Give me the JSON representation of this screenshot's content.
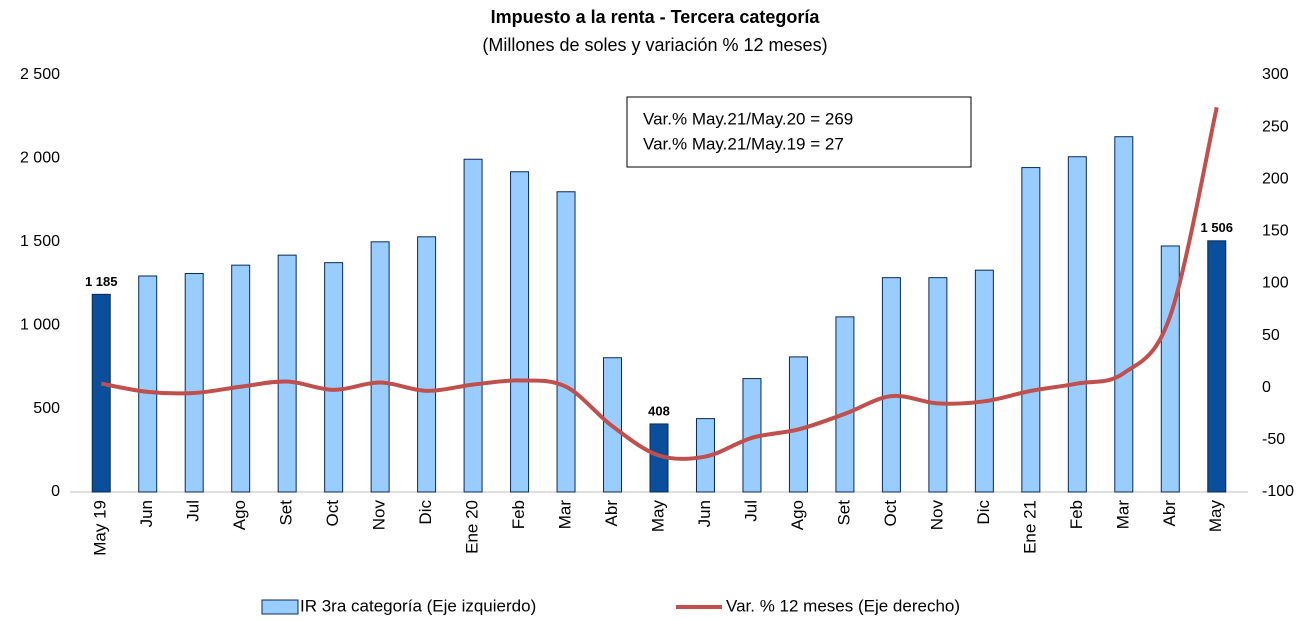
{
  "chart_data": {
    "type": "bar_line",
    "title": "Impuesto a la renta - Tercera categoría",
    "subtitle": "(Millones de soles y variación % 12 meses)",
    "annotations": [
      "Var.% May.21/May.20 = 269",
      "Var.% May.21/May.19 = 27"
    ],
    "categories": [
      "May 19",
      "Jun",
      "Jul",
      "Ago",
      "Set",
      "Oct",
      "Nov",
      "Dic",
      "Ene 20",
      "Feb",
      "Mar",
      "Abr",
      "May",
      "Jun",
      "Jul",
      "Ago",
      "Set",
      "Oct",
      "Nov",
      "Dic",
      "Ene 21",
      "Feb",
      "Mar",
      "Abr",
      "May"
    ],
    "series": [
      {
        "name": "IR 3ra categoría (Eje izquierdo)",
        "type": "bar",
        "color": "#99ccff",
        "colors": [
          "#0b4f9c",
          "#99ccff",
          "#99ccff",
          "#99ccff",
          "#99ccff",
          "#99ccff",
          "#99ccff",
          "#99ccff",
          "#99ccff",
          "#99ccff",
          "#99ccff",
          "#99ccff",
          "#0b4f9c",
          "#99ccff",
          "#99ccff",
          "#99ccff",
          "#99ccff",
          "#99ccff",
          "#99ccff",
          "#99ccff",
          "#99ccff",
          "#99ccff",
          "#99ccff",
          "#99ccff",
          "#0b4f9c"
        ],
        "values": [
          1185,
          1295,
          1310,
          1360,
          1420,
          1375,
          1500,
          1530,
          1995,
          1920,
          1800,
          805,
          408,
          440,
          680,
          810,
          1050,
          1285,
          1285,
          1330,
          1945,
          2010,
          2130,
          1475,
          1506
        ],
        "value_labels": [
          "1 185",
          null,
          null,
          null,
          null,
          null,
          null,
          null,
          null,
          null,
          null,
          null,
          "408",
          null,
          null,
          null,
          null,
          null,
          null,
          null,
          null,
          null,
          null,
          null,
          "1 506"
        ]
      },
      {
        "name": "Var. % 12 meses (Eje derecho)",
        "type": "line",
        "axis": "y2",
        "color": "#c0504d",
        "values": [
          4,
          -4,
          -5,
          1,
          6,
          -2,
          5,
          -3,
          3,
          7,
          1,
          -37,
          -65,
          -66,
          -48,
          -40,
          -25,
          -8,
          -15,
          -13,
          -3,
          4,
          14,
          69,
          269
        ]
      }
    ],
    "ylim": [
      0,
      2500
    ],
    "yticks": [
      0,
      500,
      {
        "value": 1000,
        "label": "1 000"
      },
      {
        "value": 1500,
        "label": "1 500"
      },
      {
        "value": 2000,
        "label": "2 000"
      },
      {
        "value": 2500,
        "label": "2 500"
      }
    ],
    "y2lim": [
      -100,
      300
    ],
    "y2ticks": [
      -100,
      -50,
      0,
      50,
      100,
      150,
      200,
      250,
      300
    ],
    "legend": "bottom"
  }
}
